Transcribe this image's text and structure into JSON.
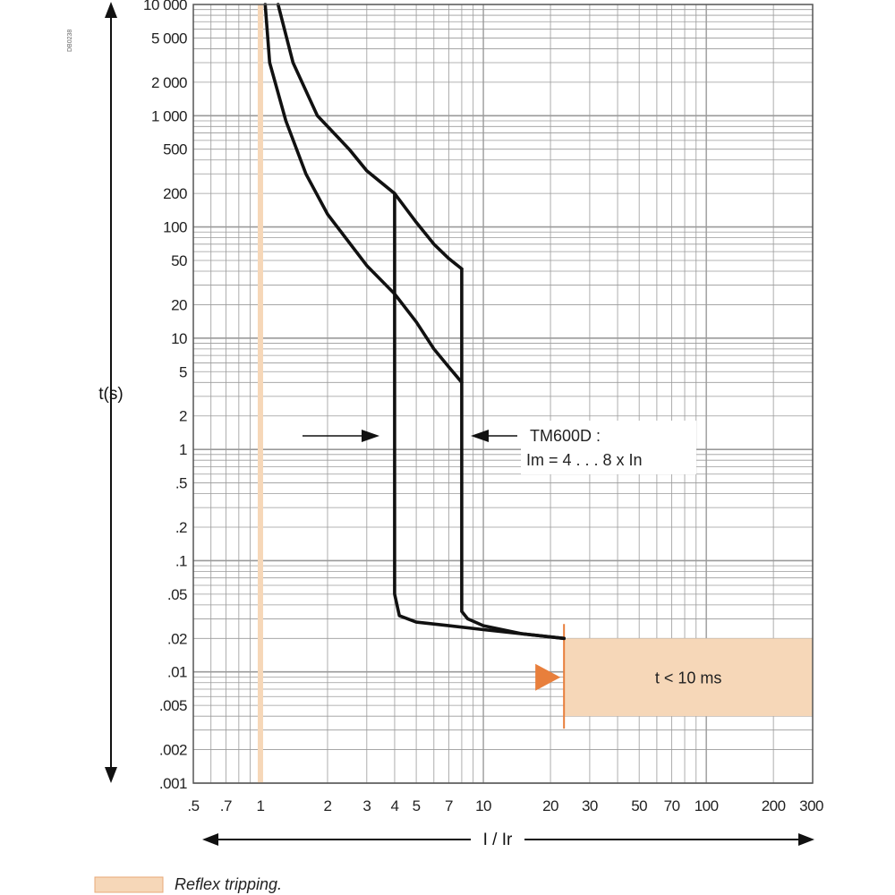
{
  "chart_data": {
    "type": "line",
    "title": "",
    "xlabel": "I / Ir",
    "ylabel": "t(s)",
    "x_scale": "log",
    "y_scale": "log",
    "xlim": [
      0.5,
      300
    ],
    "ylim": [
      0.001,
      10000
    ],
    "grid": true,
    "x_ticks": [
      0.5,
      0.7,
      1,
      2,
      3,
      4,
      5,
      7,
      10,
      20,
      30,
      50,
      70,
      100,
      200,
      300
    ],
    "x_tick_labels": [
      ".5",
      ".7",
      "1",
      "2",
      "3",
      "4",
      "5",
      "7",
      "10",
      "20",
      "30",
      "50",
      "70",
      "100",
      "200",
      "300"
    ],
    "y_ticks": [
      10000,
      5000,
      2000,
      1000,
      500,
      200,
      100,
      50,
      20,
      10,
      5,
      2,
      1,
      0.5,
      0.2,
      0.1,
      0.05,
      0.02,
      0.01,
      0.005,
      0.002,
      0.001
    ],
    "y_tick_labels": [
      "10 000",
      "5 000",
      "2 000",
      "1 000",
      "500",
      "200",
      "100",
      "50",
      "20",
      "10",
      "5",
      "2",
      "1",
      ".5",
      ".2",
      ".1",
      ".05",
      ".02",
      ".01",
      ".005",
      ".002",
      ".001"
    ],
    "series": [
      {
        "values": [
          [
            1.05,
            10000
          ],
          [
            1.1,
            3000
          ],
          [
            1.3,
            900
          ],
          [
            1.6,
            300
          ],
          [
            2,
            130
          ],
          [
            3,
            45
          ],
          [
            4,
            25
          ],
          [
            5,
            14
          ],
          [
            6,
            8
          ],
          [
            7,
            5.5
          ],
          [
            8,
            4
          ]
        ]
      },
      {
        "values": [
          [
            1.2,
            10000
          ],
          [
            1.4,
            3000
          ],
          [
            1.8,
            1000
          ],
          [
            2.5,
            500
          ],
          [
            3,
            320
          ],
          [
            4,
            200
          ],
          [
            5,
            110
          ],
          [
            6,
            70
          ],
          [
            7,
            52
          ],
          [
            8,
            42
          ]
        ]
      },
      {
        "values": [
          [
            4,
            200
          ],
          [
            4,
            0.05
          ],
          [
            4.2,
            0.032
          ],
          [
            5,
            0.028
          ],
          [
            7,
            0.026
          ],
          [
            10,
            0.024
          ],
          [
            15,
            0.022
          ],
          [
            23,
            0.02
          ]
        ]
      },
      {
        "values": [
          [
            8,
            42
          ],
          [
            8,
            0.035
          ],
          [
            8.5,
            0.03
          ],
          [
            10,
            0.026
          ],
          [
            15,
            0.022
          ],
          [
            23,
            0.02
          ]
        ]
      }
    ],
    "annotations": [
      {
        "text_lines": [
          "TM600D :",
          "Im = 4 . . . 8 x In"
        ]
      },
      {
        "text": "t < 10 ms",
        "x_range": [
          23,
          300
        ],
        "y_range": [
          0.004,
          0.02
        ]
      }
    ],
    "reflex_line_x": 1,
    "legend": [
      {
        "label": "Reflex tripping."
      }
    ],
    "colors": {
      "curve": "#111111",
      "reflex": "#f6d7b8",
      "reflex_edge": "#e87f3c",
      "grid": "#9a9a9a"
    }
  },
  "corner_code": "DB0238"
}
